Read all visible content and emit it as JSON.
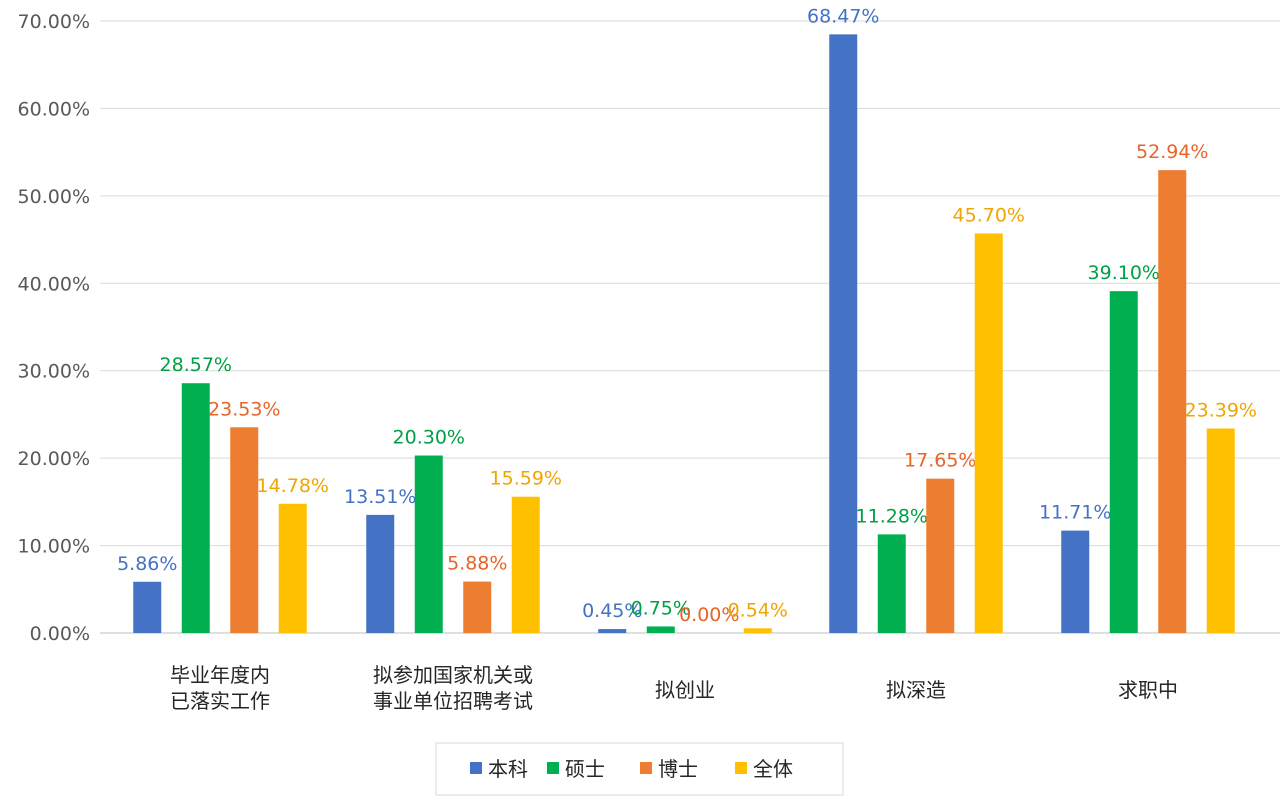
{
  "chart_data": {
    "type": "bar",
    "title": "",
    "xlabel": "",
    "ylabel": "",
    "ylim": [
      0,
      70
    ],
    "y_ticks": [
      "0.00%",
      "10.00%",
      "20.00%",
      "30.00%",
      "40.00%",
      "50.00%",
      "60.00%",
      "70.00%"
    ],
    "grid": true,
    "legend_position": "bottom",
    "categories": [
      "毕业年度内\n已落实工作",
      "拟参加国家机关或\n事业单位招聘考试",
      "拟创业",
      "拟深造",
      "求职中"
    ],
    "series": [
      {
        "name": "本科",
        "color": "#4472C4",
        "label_color": "#4472C4",
        "values": [
          5.86,
          13.51,
          0.45,
          68.47,
          11.71
        ],
        "labels": [
          "5.86%",
          "13.51%",
          "0.45%",
          "68.47%",
          "11.71%"
        ]
      },
      {
        "name": "硕士",
        "color": "#00B050",
        "label_color": "#00A046",
        "values": [
          28.57,
          20.3,
          0.75,
          11.28,
          39.1
        ],
        "labels": [
          "28.57%",
          "20.30%",
          "0.75%",
          "11.28%",
          "39.10%"
        ]
      },
      {
        "name": "博士",
        "color": "#ED7D31",
        "label_color": "#E8642A",
        "values": [
          23.53,
          5.88,
          0.0,
          17.65,
          52.94
        ],
        "labels": [
          "23.53%",
          "5.88%",
          "0.00%",
          "17.65%",
          "52.94%"
        ]
      },
      {
        "name": "全体",
        "color": "#FFC000",
        "label_color": "#F0A500",
        "values": [
          14.78,
          15.59,
          0.54,
          45.7,
          23.39
        ],
        "labels": [
          "14.78%",
          "15.59%",
          "0.54%",
          "45.70%",
          "23.39%"
        ]
      }
    ]
  }
}
